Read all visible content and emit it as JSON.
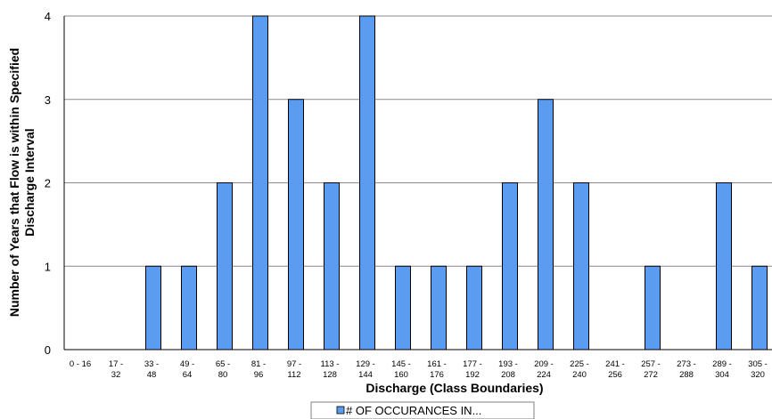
{
  "chart_data": {
    "type": "bar",
    "categories": [
      [
        "0 - 16"
      ],
      [
        "17 -",
        "32"
      ],
      [
        "33 -",
        "48"
      ],
      [
        "49 -",
        "64"
      ],
      [
        "65 -",
        "80"
      ],
      [
        "81 -",
        "96"
      ],
      [
        "97 -",
        "112"
      ],
      [
        "113 -",
        "128"
      ],
      [
        "129 -",
        "144"
      ],
      [
        "145 -",
        "160"
      ],
      [
        "161 -",
        "176"
      ],
      [
        "177 -",
        "192"
      ],
      [
        "193 -",
        "208"
      ],
      [
        "209 -",
        "224"
      ],
      [
        "225 -",
        "240"
      ],
      [
        "241 -",
        "256"
      ],
      [
        "257 -",
        "272"
      ],
      [
        "273 -",
        "288"
      ],
      [
        "289 -",
        "304"
      ],
      [
        "305 -",
        "320"
      ]
    ],
    "series": [
      {
        "name": "# OF OCCURANCES IN...",
        "color": "#5b9bf0",
        "values": [
          0,
          0,
          1,
          1,
          2,
          4,
          3,
          2,
          4,
          1,
          1,
          1,
          2,
          3,
          2,
          0,
          1,
          0,
          2,
          1
        ]
      }
    ],
    "xlabel": "Discharge (Class Boundaries)",
    "ylabel": [
      "Number of Years that Flow is within Specified",
      "Discharge Interval"
    ],
    "ylim": [
      0,
      4
    ],
    "yticks": [
      0,
      1,
      2,
      3,
      4
    ],
    "grid": true,
    "legend": "bottom-center"
  }
}
